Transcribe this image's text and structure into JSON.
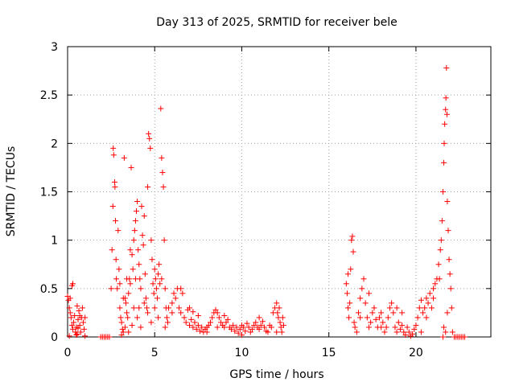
{
  "chart_data": {
    "type": "scatter",
    "title": "Day 313 of 2025, SRMTID for receiver bele",
    "xlabel": "GPS time / hours",
    "ylabel": "SRMTID / TECUs",
    "xlim": [
      0,
      24.3
    ],
    "ylim": [
      0,
      3
    ],
    "xticks": [
      0,
      5,
      10,
      15,
      20
    ],
    "xtick_labels": [
      "0",
      "5",
      "10",
      "15",
      "20"
    ],
    "yticks": [
      0,
      0.5,
      1,
      1.5,
      2,
      2.5,
      3
    ],
    "ytick_labels": [
      "0",
      "0.5",
      "1",
      "1.5",
      "2",
      "2.5",
      "3"
    ],
    "grid": true,
    "marker": "+",
    "color": "#ff0000",
    "series": [
      {
        "name": "SRMTID",
        "points": [
          [
            0.0,
            0.42
          ],
          [
            0.05,
            0.38
          ],
          [
            0.1,
            0.3
          ],
          [
            0.15,
            0.25
          ],
          [
            0.2,
            0.2
          ],
          [
            0.25,
            0.12
          ],
          [
            0.3,
            0.08
          ],
          [
            0.35,
            0.15
          ],
          [
            0.4,
            0.22
          ],
          [
            0.45,
            0.05
          ],
          [
            0.5,
            0.1
          ],
          [
            0.55,
            0.03
          ],
          [
            0.6,
            0.18
          ],
          [
            0.65,
            0.27
          ],
          [
            0.7,
            0.12
          ],
          [
            0.75,
            0.05
          ],
          [
            0.8,
            0.2
          ],
          [
            0.85,
            0.3
          ],
          [
            0.9,
            0.15
          ],
          [
            0.95,
            0.08
          ],
          [
            0.25,
            0.53
          ],
          [
            0.3,
            0.55
          ],
          [
            0.1,
            0.01
          ],
          [
            0.5,
            0.02
          ],
          [
            1.0,
            0.2
          ],
          [
            1.0,
            0.01
          ],
          [
            0.15,
            0.4
          ],
          [
            0.55,
            0.32
          ],
          [
            0.6,
            0.09
          ],
          [
            0.7,
            0.22
          ],
          [
            1.9,
            0.0
          ],
          [
            2.0,
            0.0
          ],
          [
            2.1,
            0.0
          ],
          [
            2.2,
            0.0
          ],
          [
            2.3,
            0.0
          ],
          [
            2.4,
            0.0
          ],
          [
            2.5,
            0.5
          ],
          [
            2.55,
            0.9
          ],
          [
            2.6,
            1.35
          ],
          [
            2.62,
            1.95
          ],
          [
            2.65,
            1.88
          ],
          [
            2.7,
            1.6
          ],
          [
            2.72,
            1.55
          ],
          [
            2.75,
            1.2
          ],
          [
            2.78,
            0.8
          ],
          [
            2.8,
            0.6
          ],
          [
            2.85,
            0.5
          ],
          [
            2.9,
            1.1
          ],
          [
            2.95,
            0.7
          ],
          [
            3.0,
            0.3
          ],
          [
            3.05,
            0.2
          ],
          [
            3.1,
            0.15
          ],
          [
            3.15,
            0.08
          ],
          [
            3.2,
            0.05
          ],
          [
            3.25,
            1.85
          ],
          [
            3.3,
            0.4
          ],
          [
            3.35,
            0.35
          ],
          [
            3.4,
            0.25
          ],
          [
            3.45,
            0.2
          ],
          [
            3.5,
            0.45
          ],
          [
            3.55,
            0.6
          ],
          [
            3.6,
            0.55
          ],
          [
            3.65,
            1.75
          ],
          [
            3.7,
            0.85
          ],
          [
            3.75,
            0.7
          ],
          [
            3.8,
            1.0
          ],
          [
            3.85,
            1.1
          ],
          [
            3.9,
            1.2
          ],
          [
            3.95,
            1.3
          ],
          [
            4.0,
            1.4
          ],
          [
            4.05,
            0.9
          ],
          [
            4.1,
            0.75
          ],
          [
            4.15,
            0.6
          ],
          [
            4.2,
            0.5
          ],
          [
            4.25,
            1.35
          ],
          [
            4.3,
            1.05
          ],
          [
            4.35,
            0.95
          ],
          [
            4.4,
            1.25
          ],
          [
            4.45,
            0.65
          ],
          [
            4.5,
            0.4
          ],
          [
            4.55,
            0.3
          ],
          [
            4.6,
            1.55
          ],
          [
            4.65,
            2.1
          ],
          [
            4.7,
            2.05
          ],
          [
            4.75,
            1.95
          ],
          [
            4.8,
            1.0
          ],
          [
            4.85,
            0.8
          ],
          [
            4.9,
            0.55
          ],
          [
            4.95,
            0.45
          ],
          [
            5.0,
            0.7
          ],
          [
            5.05,
            0.6
          ],
          [
            5.1,
            0.5
          ],
          [
            5.15,
            0.4
          ],
          [
            5.2,
            0.65
          ],
          [
            5.25,
            0.75
          ],
          [
            5.3,
            0.55
          ],
          [
            5.35,
            2.36
          ],
          [
            5.4,
            1.85
          ],
          [
            5.45,
            1.7
          ],
          [
            5.5,
            1.55
          ],
          [
            5.55,
            1.0
          ],
          [
            5.6,
            0.5
          ],
          [
            5.65,
            0.3
          ],
          [
            5.7,
            0.2
          ],
          [
            5.75,
            0.15
          ],
          [
            5.8,
            0.3
          ],
          [
            3.0,
            0.55
          ],
          [
            3.2,
            0.4
          ],
          [
            3.4,
            0.6
          ],
          [
            3.6,
            0.9
          ],
          [
            3.8,
            0.3
          ],
          [
            4.0,
            0.2
          ],
          [
            4.2,
            0.1
          ],
          [
            4.4,
            0.35
          ],
          [
            4.6,
            0.25
          ],
          [
            4.8,
            0.15
          ],
          [
            5.0,
            0.3
          ],
          [
            5.2,
            0.2
          ],
          [
            5.4,
            0.6
          ],
          [
            5.6,
            0.1
          ],
          [
            3.1,
            0.02
          ],
          [
            3.3,
            0.1
          ],
          [
            3.5,
            0.05
          ],
          [
            3.7,
            0.12
          ],
          [
            3.9,
            0.6
          ],
          [
            4.1,
            0.3
          ],
          [
            6.0,
            0.35
          ],
          [
            6.1,
            0.45
          ],
          [
            6.2,
            0.4
          ],
          [
            6.3,
            0.5
          ],
          [
            6.4,
            0.3
          ],
          [
            6.5,
            0.25
          ],
          [
            6.6,
            0.45
          ],
          [
            6.7,
            0.2
          ],
          [
            6.8,
            0.15
          ],
          [
            6.9,
            0.28
          ],
          [
            7.0,
            0.12
          ],
          [
            7.1,
            0.18
          ],
          [
            7.2,
            0.1
          ],
          [
            7.3,
            0.15
          ],
          [
            7.4,
            0.08
          ],
          [
            7.5,
            0.12
          ],
          [
            7.6,
            0.06
          ],
          [
            7.7,
            0.1
          ],
          [
            7.8,
            0.05
          ],
          [
            7.9,
            0.08
          ],
          [
            8.0,
            0.1
          ],
          [
            8.1,
            0.12
          ],
          [
            8.2,
            0.15
          ],
          [
            8.3,
            0.2
          ],
          [
            8.4,
            0.25
          ],
          [
            8.5,
            0.28
          ],
          [
            8.6,
            0.25
          ],
          [
            8.7,
            0.2
          ],
          [
            8.8,
            0.15
          ],
          [
            8.9,
            0.12
          ],
          [
            9.0,
            0.1
          ],
          [
            9.1,
            0.15
          ],
          [
            9.2,
            0.18
          ],
          [
            9.3,
            0.1
          ],
          [
            9.4,
            0.08
          ],
          [
            9.5,
            0.12
          ],
          [
            9.6,
            0.06
          ],
          [
            9.7,
            0.1
          ],
          [
            9.8,
            0.04
          ],
          [
            9.9,
            0.08
          ],
          [
            10.0,
            0.12
          ],
          [
            10.1,
            0.1
          ],
          [
            10.2,
            0.06
          ],
          [
            10.3,
            0.14
          ],
          [
            10.4,
            0.1
          ],
          [
            10.5,
            0.05
          ],
          [
            10.6,
            0.08
          ],
          [
            10.7,
            0.12
          ],
          [
            10.8,
            0.15
          ],
          [
            10.9,
            0.1
          ],
          [
            11.0,
            0.08
          ],
          [
            11.1,
            0.12
          ],
          [
            11.2,
            0.16
          ],
          [
            11.3,
            0.1
          ],
          [
            11.4,
            0.06
          ],
          [
            11.5,
            0.05
          ],
          [
            11.6,
            0.12
          ],
          [
            11.7,
            0.1
          ],
          [
            11.8,
            0.25
          ],
          [
            11.9,
            0.3
          ],
          [
            12.0,
            0.35
          ],
          [
            12.05,
            0.25
          ],
          [
            12.1,
            0.2
          ],
          [
            12.15,
            0.3
          ],
          [
            12.2,
            0.15
          ],
          [
            12.25,
            0.1
          ],
          [
            12.3,
            0.05
          ],
          [
            12.35,
            0.2
          ],
          [
            12.4,
            0.12
          ],
          [
            6.0,
            0.25
          ],
          [
            7.0,
            0.3
          ],
          [
            7.5,
            0.22
          ],
          [
            8.0,
            0.05
          ],
          [
            9.0,
            0.22
          ],
          [
            10.0,
            0.02
          ],
          [
            11.0,
            0.2
          ],
          [
            12.0,
            0.05
          ],
          [
            6.5,
            0.5
          ],
          [
            7.2,
            0.26
          ],
          [
            8.6,
            0.1
          ],
          [
            16.0,
            0.55
          ],
          [
            16.05,
            0.45
          ],
          [
            16.1,
            0.3
          ],
          [
            16.15,
            0.2
          ],
          [
            16.2,
            0.35
          ],
          [
            16.25,
            0.7
          ],
          [
            16.3,
            1.0
          ],
          [
            16.35,
            1.04
          ],
          [
            16.4,
            0.88
          ],
          [
            16.45,
            0.15
          ],
          [
            16.5,
            0.1
          ],
          [
            16.6,
            0.05
          ],
          [
            16.7,
            0.25
          ],
          [
            16.8,
            0.4
          ],
          [
            16.9,
            0.5
          ],
          [
            17.0,
            0.6
          ],
          [
            17.1,
            0.35
          ],
          [
            17.2,
            0.2
          ],
          [
            17.3,
            0.1
          ],
          [
            17.4,
            0.15
          ],
          [
            17.5,
            0.25
          ],
          [
            17.6,
            0.3
          ],
          [
            17.7,
            0.18
          ],
          [
            17.8,
            0.1
          ],
          [
            17.9,
            0.2
          ],
          [
            18.0,
            0.25
          ],
          [
            18.1,
            0.15
          ],
          [
            18.2,
            0.05
          ],
          [
            18.3,
            0.1
          ],
          [
            18.4,
            0.2
          ],
          [
            18.5,
            0.3
          ],
          [
            18.6,
            0.35
          ],
          [
            18.7,
            0.25
          ],
          [
            18.8,
            0.1
          ],
          [
            18.9,
            0.05
          ],
          [
            19.0,
            0.15
          ],
          [
            19.1,
            0.08
          ],
          [
            19.2,
            0.12
          ],
          [
            19.3,
            0.05
          ],
          [
            19.4,
            0.02
          ],
          [
            19.5,
            0.1
          ],
          [
            19.6,
            0.05
          ],
          [
            19.7,
            0.01
          ],
          [
            19.8,
            0.03
          ],
          [
            19.9,
            0.08
          ],
          [
            20.0,
            0.12
          ],
          [
            20.1,
            0.2
          ],
          [
            20.2,
            0.3
          ],
          [
            20.3,
            0.38
          ],
          [
            20.4,
            0.25
          ],
          [
            20.5,
            0.3
          ],
          [
            20.6,
            0.4
          ],
          [
            20.7,
            0.35
          ],
          [
            20.8,
            0.45
          ],
          [
            20.9,
            0.3
          ],
          [
            21.0,
            0.5
          ],
          [
            21.1,
            0.55
          ],
          [
            21.2,
            0.6
          ],
          [
            21.3,
            0.75
          ],
          [
            21.4,
            0.9
          ],
          [
            21.45,
            1.0
          ],
          [
            21.5,
            1.2
          ],
          [
            21.55,
            1.5
          ],
          [
            21.6,
            1.8
          ],
          [
            21.62,
            2.0
          ],
          [
            21.65,
            2.2
          ],
          [
            21.7,
            2.35
          ],
          [
            21.72,
            2.47
          ],
          [
            21.75,
            2.78
          ],
          [
            21.78,
            2.3
          ],
          [
            21.8,
            1.4
          ],
          [
            21.85,
            1.1
          ],
          [
            21.9,
            0.8
          ],
          [
            21.95,
            0.65
          ],
          [
            22.0,
            0.5
          ],
          [
            22.05,
            0.3
          ],
          [
            21.55,
            0.0
          ],
          [
            21.6,
            0.1
          ],
          [
            21.7,
            0.05
          ],
          [
            21.8,
            0.25
          ],
          [
            22.1,
            0.05
          ],
          [
            22.2,
            0.0
          ],
          [
            22.3,
            0.0
          ],
          [
            22.4,
            0.0
          ],
          [
            22.5,
            0.0
          ],
          [
            22.6,
            0.0
          ],
          [
            22.7,
            0.0
          ],
          [
            22.8,
            0.0
          ],
          [
            16.8,
            0.2
          ],
          [
            17.3,
            0.45
          ],
          [
            18.0,
            0.1
          ],
          [
            18.9,
            0.3
          ],
          [
            19.2,
            0.25
          ],
          [
            20.3,
            0.05
          ],
          [
            20.6,
            0.2
          ],
          [
            21.0,
            0.4
          ],
          [
            21.35,
            0.6
          ],
          [
            16.1,
            0.65
          ]
        ]
      }
    ]
  }
}
